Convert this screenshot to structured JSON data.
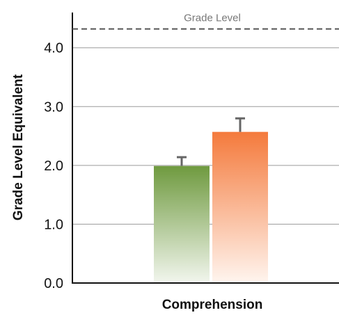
{
  "chart_data": {
    "type": "bar",
    "ylabel": "Grade Level Equivalent",
    "xlabel": "Comprehension",
    "ylim": [
      0,
      4.6
    ],
    "yticks": [
      0,
      1,
      2,
      3,
      4
    ],
    "ytick_labels": [
      "0.0",
      "1.0",
      "2.0",
      "3.0",
      "4.0"
    ],
    "grid": true,
    "reference_line": {
      "label": "Grade Level",
      "value": 4.32,
      "style": "dashed"
    },
    "bars": [
      {
        "value": 1.99,
        "error": 0.15,
        "color": "#6f9a3f",
        "fade_color": "#f2f6ee"
      },
      {
        "value": 2.57,
        "error": 0.23,
        "color": "#f47a3c",
        "fade_color": "#fff5ef"
      }
    ]
  }
}
